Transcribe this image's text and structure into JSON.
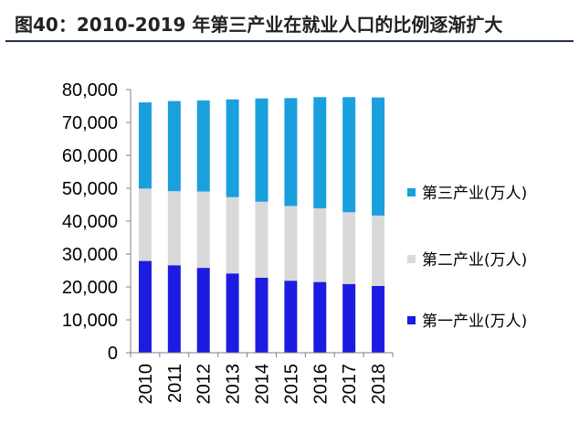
{
  "chart_data": {
    "type": "bar",
    "stacked": true,
    "title": "图40：2010-2019 年第三产业在就业人口的比例逐渐扩大",
    "xlabel": "",
    "ylabel": "",
    "ylim": [
      0,
      80000
    ],
    "yticks": [
      "0",
      "10,000",
      "20,000",
      "30,000",
      "40,000",
      "50,000",
      "60,000",
      "70,000",
      "80,000"
    ],
    "grid": false,
    "legend_position": "right",
    "categories": [
      "2010",
      "2011",
      "2012",
      "2013",
      "2014",
      "2015",
      "2016",
      "2017",
      "2018"
    ],
    "series": [
      {
        "name": "第一产业(万人)",
        "color": "#1c1ce0",
        "values": [
          27900,
          26600,
          25800,
          24100,
          22800,
          21900,
          21500,
          20900,
          20300
        ]
      },
      {
        "name": "第二产业(万人)",
        "color": "#d9d9d9",
        "values": [
          22000,
          22500,
          23200,
          23200,
          23100,
          22700,
          22400,
          21800,
          21400
        ]
      },
      {
        "name": "第三产业(万人)",
        "color": "#1aa0dc",
        "values": [
          26200,
          27400,
          27700,
          29700,
          31400,
          32800,
          33800,
          35000,
          35900
        ]
      }
    ]
  }
}
